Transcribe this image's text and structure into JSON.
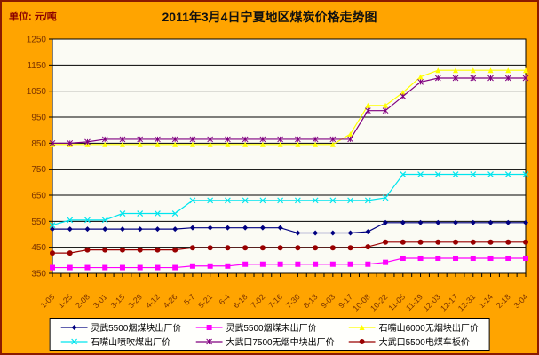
{
  "title": "2011年3月4日宁夏地区煤炭价格走势图",
  "unit_label": "单位: 元/吨",
  "colors": {
    "background": "#ffa400",
    "frame": "#8b1a00",
    "plot_background": "#fbfbf4",
    "gridline": "#000000",
    "axis_text": "#7a3300"
  },
  "chart_data": {
    "type": "line",
    "title": "2011年3月4日宁夏地区煤炭价格走势图",
    "ylabel": "元/吨",
    "ylim": [
      350,
      1250
    ],
    "y_ticks": [
      1250,
      1150,
      1050,
      950,
      850,
      750,
      650,
      550,
      450,
      350
    ],
    "grid": true,
    "legend_position": "bottom",
    "x_labels": [
      "1-05",
      "1-25",
      "2-08",
      "3-01",
      "3-15",
      "3-29",
      "4-12",
      "4-26",
      "5-7",
      "5-21",
      "6-4",
      "6-18",
      "7-02",
      "7-16",
      "7-30",
      "8-13",
      "9-03",
      "9-17",
      "10-08",
      "10-22",
      "11-05",
      "11-19",
      "12-03",
      "12-17",
      "12-31",
      "1-14",
      "2-18",
      "3-04"
    ],
    "series": [
      {
        "name": "灵武5500烟煤块出厂价",
        "color": "#000080",
        "marker": "diamond",
        "values": [
          520,
          520,
          520,
          520,
          520,
          520,
          520,
          520,
          525,
          525,
          525,
          525,
          525,
          525,
          505,
          505,
          505,
          505,
          510,
          545,
          545,
          545,
          545,
          545,
          545,
          545,
          545,
          545
        ]
      },
      {
        "name": "灵武5500烟煤末出厂价",
        "color": "#ff00ff",
        "marker": "square",
        "values": [
          372,
          372,
          372,
          372,
          372,
          372,
          372,
          372,
          378,
          378,
          378,
          385,
          385,
          385,
          385,
          385,
          385,
          385,
          385,
          392,
          408,
          408,
          408,
          408,
          408,
          408,
          408,
          408
        ]
      },
      {
        "name": "石嘴山6000无烟块出厂价",
        "color": "#ffff00",
        "marker": "triangle",
        "values": [
          845,
          845,
          845,
          845,
          845,
          845,
          845,
          845,
          845,
          845,
          845,
          845,
          845,
          845,
          845,
          845,
          845,
          885,
          995,
          995,
          1045,
          1105,
          1130,
          1130,
          1130,
          1130,
          1130,
          1130
        ]
      },
      {
        "name": "石嘴山喷吹煤出厂价",
        "color": "#00e5ee",
        "marker": "x",
        "values": [
          535,
          555,
          555,
          555,
          580,
          580,
          580,
          580,
          630,
          630,
          630,
          630,
          630,
          630,
          630,
          630,
          630,
          630,
          630,
          640,
          730,
          730,
          730,
          730,
          730,
          730,
          730,
          730
        ]
      },
      {
        "name": "大武口7500无烟中块出厂价",
        "color": "#800080",
        "marker": "star",
        "values": [
          850,
          850,
          855,
          865,
          865,
          865,
          865,
          865,
          865,
          865,
          865,
          865,
          865,
          865,
          865,
          865,
          865,
          865,
          975,
          975,
          1030,
          1085,
          1100,
          1100,
          1100,
          1100,
          1100,
          1100
        ]
      },
      {
        "name": "大武口5500电煤车板价",
        "color": "#990000",
        "marker": "circle",
        "values": [
          428,
          428,
          440,
          440,
          440,
          440,
          440,
          440,
          448,
          448,
          448,
          448,
          448,
          448,
          448,
          448,
          448,
          448,
          452,
          470,
          470,
          470,
          470,
          470,
          470,
          470,
          470,
          470
        ]
      }
    ]
  }
}
